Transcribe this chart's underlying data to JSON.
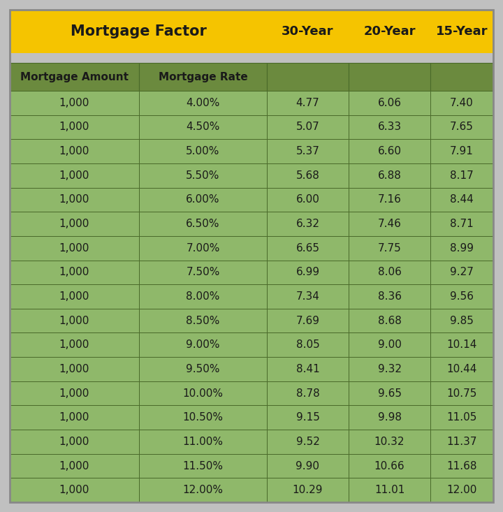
{
  "title_text": "Mortgage Factor",
  "col_headers": [
    "30-Year",
    "20-Year",
    "15-Year"
  ],
  "sub_headers": [
    "Mortgage Amount",
    "Mortgage Rate"
  ],
  "rows": [
    [
      "1,000",
      "4.00%",
      "4.77",
      "6.06",
      "7.40"
    ],
    [
      "1,000",
      "4.50%",
      "5.07",
      "6.33",
      "7.65"
    ],
    [
      "1,000",
      "5.00%",
      "5.37",
      "6.60",
      "7.91"
    ],
    [
      "1,000",
      "5.50%",
      "5.68",
      "6.88",
      "8.17"
    ],
    [
      "1,000",
      "6.00%",
      "6.00",
      "7.16",
      "8.44"
    ],
    [
      "1,000",
      "6.50%",
      "6.32",
      "7.46",
      "8.71"
    ],
    [
      "1,000",
      "7.00%",
      "6.65",
      "7.75",
      "8.99"
    ],
    [
      "1,000",
      "7.50%",
      "6.99",
      "8.06",
      "9.27"
    ],
    [
      "1,000",
      "8.00%",
      "7.34",
      "8.36",
      "9.56"
    ],
    [
      "1,000",
      "8.50%",
      "7.69",
      "8.68",
      "9.85"
    ],
    [
      "1,000",
      "9.00%",
      "8.05",
      "9.00",
      "10.14"
    ],
    [
      "1,000",
      "9.50%",
      "8.41",
      "9.32",
      "10.44"
    ],
    [
      "1,000",
      "10.00%",
      "8.78",
      "9.65",
      "10.75"
    ],
    [
      "1,000",
      "10.50%",
      "9.15",
      "9.98",
      "11.05"
    ],
    [
      "1,000",
      "11.00%",
      "9.52",
      "10.32",
      "11.37"
    ],
    [
      "1,000",
      "11.50%",
      "9.90",
      "10.66",
      "11.68"
    ],
    [
      "1,000",
      "12.00%",
      "10.29",
      "11.01",
      "12.00"
    ]
  ],
  "header_bg_color": "#F5C400",
  "header_text_color": "#1a1a1a",
  "subheader_bg_color": "#6B8A3E",
  "subheader_text_color": "#1a1a1a",
  "cell_bg_color": "#8FB86A",
  "cell_text_color": "#1a1a1a",
  "border_color": "#4A6A2A",
  "gap_color": "#C0C0C0",
  "figure_bg_color": "#C0C0C0"
}
